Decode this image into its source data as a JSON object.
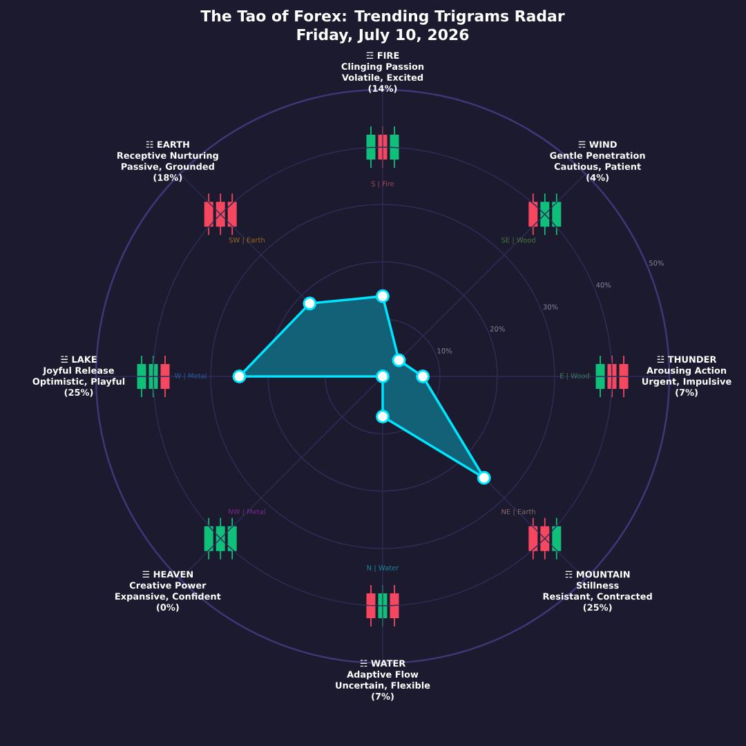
{
  "chart_data": {
    "type": "radar",
    "title": "The Tao of Forex: Trending Trigrams Radar",
    "subtitle": "Friday, July 10, 2026",
    "categories": [
      "☲ FIRE",
      "☴ WIND",
      "☳ THUNDER",
      "☶ MOUNTAIN",
      "☵ WATER",
      "☰ HEAVEN",
      "☱ LAKE",
      "☷ EARTH"
    ],
    "series": [
      {
        "color": "#00e5ff",
        "values": [
          14,
          4,
          7,
          25,
          7,
          0,
          25,
          18
        ]
      }
    ],
    "value_labels": [
      "(14%)",
      "(4%)",
      "(7%)",
      "(25%)",
      "(7%)",
      "(0%)",
      "(25%)",
      "(18%)"
    ],
    "ylim": [
      0,
      50
    ],
    "yticks": [
      {
        "value": 10,
        "label": "10%"
      },
      {
        "value": 20,
        "label": "20%"
      },
      {
        "value": 30,
        "label": "30%"
      },
      {
        "value": 40,
        "label": "40%"
      },
      {
        "value": 50,
        "label": "50%"
      }
    ],
    "grid": true,
    "marker": "circle",
    "annotations": [
      "Clinging Passion",
      "Volatile, Excited",
      "S | Fire",
      "Gentle Penetration",
      "Cautious, Patient",
      "SE | Wood",
      "Arousing Action",
      "Urgent, Impulsive",
      "E | Wood",
      "Stillness",
      "Resistant, Contracted",
      "NE | Earth",
      "Adaptive Flow",
      "Uncertain, Flexible",
      "N | Water",
      "Creative Power",
      "Expansive, Confident",
      "NW | Metal",
      "Joyful Release",
      "Optimistic, Playful",
      "W | Metal",
      "Receptive Nurturing",
      "Passive, Grounded",
      "SW | Earth"
    ]
  }
}
